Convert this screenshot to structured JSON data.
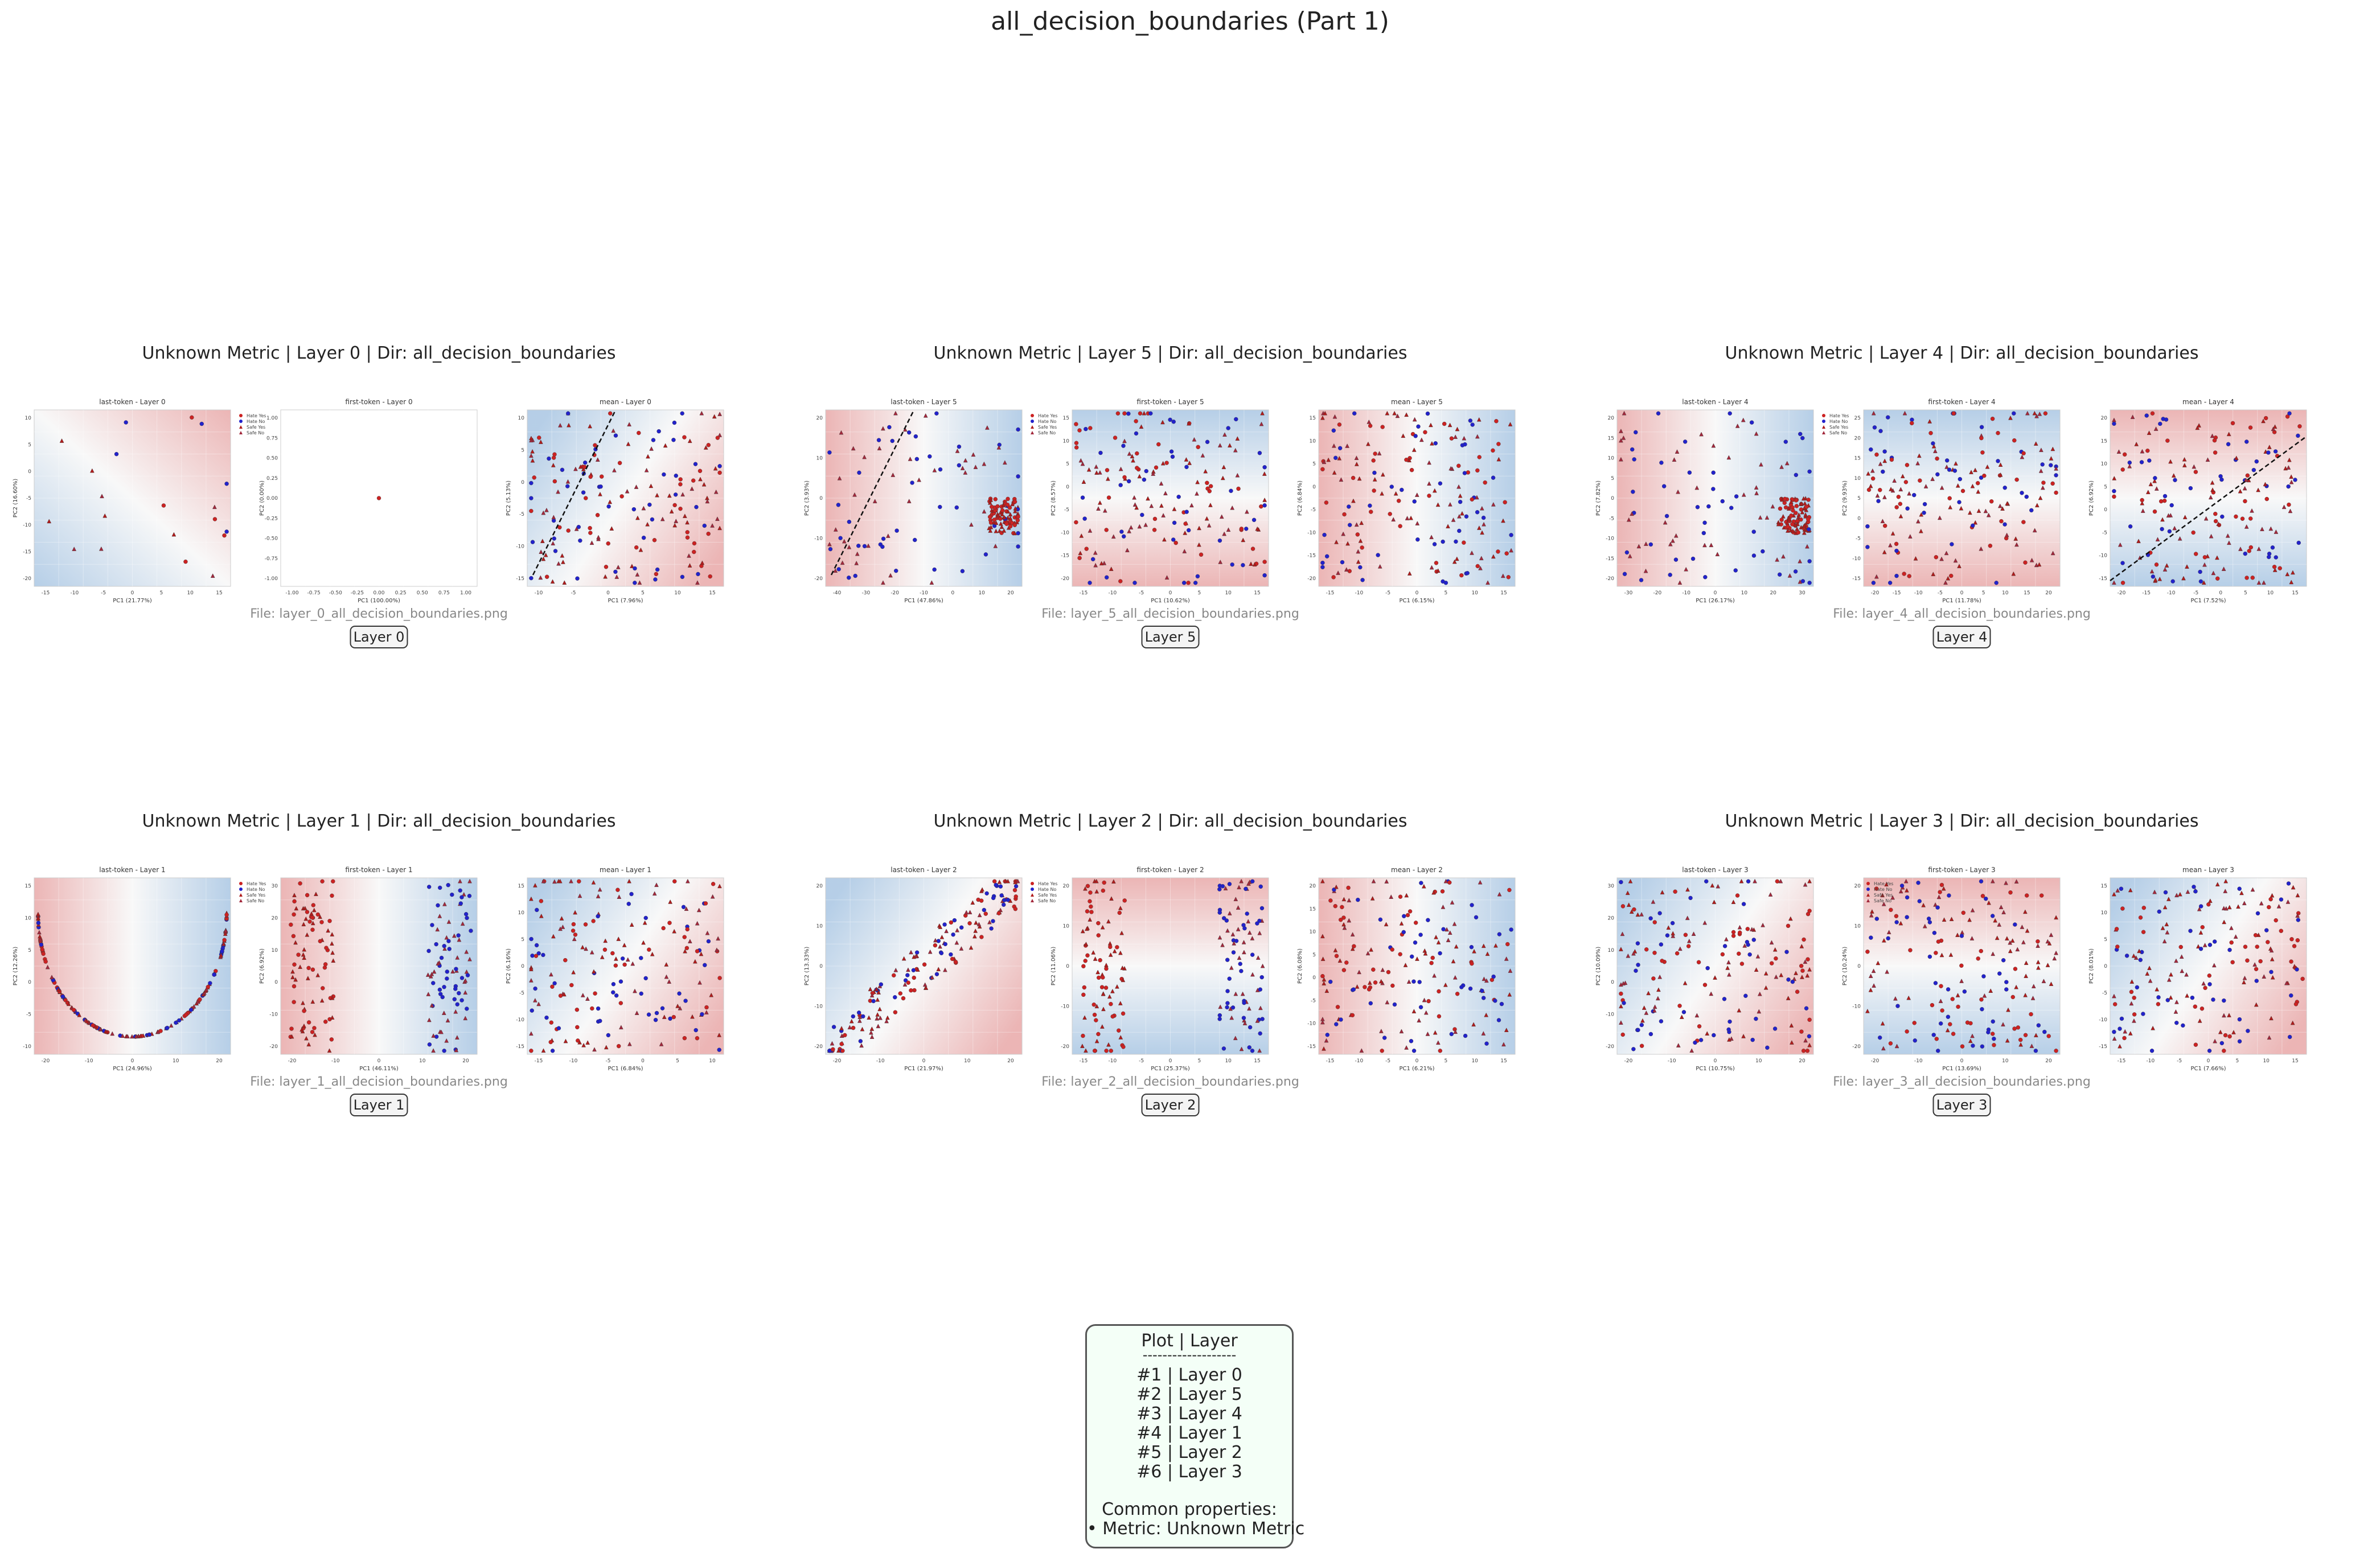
{
  "page_title": "all_decision_boundaries (Part 1)",
  "colors": {
    "hate_yes": "#cc2222",
    "hate_no": "#2222cc",
    "safe_yes": "#b01c1c",
    "safe_no": "#a2283c",
    "bg_red": "#e8a8a8",
    "bg_white": "#f7f7f7",
    "bg_blue": "#a9c6e3",
    "boundary": "#111111"
  },
  "legend_labels": [
    "Hate Yes",
    "Hate No",
    "Safe Yes",
    "Safe No"
  ],
  "groups": [
    {
      "title": "Unknown Metric | Layer 0 | Dir: all_decision_boundaries",
      "file": "File: layer_0_all_decision_boundaries.png",
      "badge": "Layer 0",
      "panels": [
        {
          "title": "last-token - Layer 0",
          "xlabel": "PC1 (21.77%)",
          "ylabel": "PC2 (16.60%)",
          "xticks": [
            "-15",
            "-10",
            "-5",
            "0",
            "5",
            "10",
            "15"
          ],
          "yticks": [
            "10",
            "5",
            "0",
            "-5",
            "-10",
            "-15",
            "-20"
          ],
          "n": 20,
          "grad": "blue-right-red",
          "legend": true,
          "seed": 11
        },
        {
          "title": "first-token - Layer 0",
          "xlabel": "PC1 (100.00%)",
          "ylabel": "PC2 (0.00%)",
          "xticks": [
            "-1.00",
            "-0.75",
            "-0.50",
            "-0.25",
            "0.00",
            "0.25",
            "0.50",
            "0.75",
            "1.00"
          ],
          "yticks": [
            "1.00",
            "0.75",
            "0.50",
            "0.25",
            "0.00",
            "-0.25",
            "-0.50",
            "-0.75",
            "-1.00"
          ],
          "n": 0,
          "grad": "plain",
          "single": true,
          "seed": 12
        },
        {
          "title": "mean - Layer 0",
          "xlabel": "PC1 (7.96%)",
          "ylabel": "PC2 (5.13%)",
          "xticks": [
            "-10",
            "-5",
            "0",
            "5",
            "10",
            "15"
          ],
          "yticks": [
            "10",
            "5",
            "0",
            "-5",
            "-10",
            "-15"
          ],
          "n": 180,
          "grad": "blue-left-red",
          "boundary": true,
          "seed": 13
        }
      ]
    },
    {
      "title": "Unknown Metric | Layer 5 | Dir: all_decision_boundaries",
      "file": "File: layer_5_all_decision_boundaries.png",
      "badge": "Layer 5",
      "panels": [
        {
          "title": "last-token - Layer 5",
          "xlabel": "PC1 (47.86%)",
          "ylabel": "PC2 (3.93%)",
          "xticks": [
            "-40",
            "-30",
            "-20",
            "-10",
            "0",
            "10",
            "20"
          ],
          "yticks": [
            "20",
            "10",
            "0",
            "-10",
            "-20"
          ],
          "n": 170,
          "grad": "red-left-blue",
          "cluster": true,
          "boundary": true,
          "legend": true,
          "seed": 21
        },
        {
          "title": "first-token - Layer 5",
          "xlabel": "PC1 (10.62%)",
          "ylabel": "PC2 (8.57%)",
          "xticks": [
            "-15",
            "-10",
            "-5",
            "0",
            "5",
            "10",
            "15"
          ],
          "yticks": [
            "15",
            "10",
            "5",
            "0",
            "-5",
            "-10",
            "-15",
            "-20"
          ],
          "n": 180,
          "grad": "blue-top-red",
          "seed": 22
        },
        {
          "title": "mean - Layer 5",
          "xlabel": "PC1 (6.15%)",
          "ylabel": "PC2 (6.84%)",
          "xticks": [
            "-15",
            "-10",
            "-5",
            "0",
            "5",
            "10",
            "15"
          ],
          "yticks": [
            "15",
            "10",
            "5",
            "0",
            "-5",
            "-10",
            "-15",
            "-20"
          ],
          "n": 180,
          "grad": "red-left-blue",
          "seed": 23
        }
      ]
    },
    {
      "title": "Unknown Metric | Layer 4 | Dir: all_decision_boundaries",
      "file": "File: layer_4_all_decision_boundaries.png",
      "badge": "Layer 4",
      "panels": [
        {
          "title": "last-token - Layer 4",
          "xlabel": "PC1 (26.17%)",
          "ylabel": "PC2 (7.82%)",
          "xticks": [
            "-30",
            "-20",
            "-10",
            "0",
            "10",
            "20",
            "30"
          ],
          "yticks": [
            "20",
            "15",
            "10",
            "5",
            "0",
            "-5",
            "-10",
            "-15",
            "-20"
          ],
          "n": 180,
          "grad": "red-left-blue",
          "cluster": true,
          "legend": true,
          "seed": 31
        },
        {
          "title": "first-token - Layer 4",
          "xlabel": "PC1 (11.78%)",
          "ylabel": "PC2 (9.93%)",
          "xticks": [
            "-20",
            "-15",
            "-10",
            "-5",
            "0",
            "5",
            "10",
            "15",
            "20"
          ],
          "yticks": [
            "25",
            "20",
            "15",
            "10",
            "5",
            "0",
            "-5",
            "-10",
            "-15"
          ],
          "n": 180,
          "grad": "blue-top-red",
          "seed": 32
        },
        {
          "title": "mean - Layer 4",
          "xlabel": "PC1 (7.52%)",
          "ylabel": "PC2 (6.92%)",
          "xticks": [
            "-20",
            "-15",
            "-10",
            "-5",
            "0",
            "5",
            "10",
            "15"
          ],
          "yticks": [
            "20",
            "15",
            "10",
            "5",
            "0",
            "-5",
            "-10",
            "-15"
          ],
          "n": 180,
          "grad": "red-top-blue",
          "boundary2": true,
          "seed": 33
        }
      ]
    },
    {
      "title": "Unknown Metric | Layer 1 | Dir: all_decision_boundaries",
      "file": "File: layer_1_all_decision_boundaries.png",
      "badge": "Layer 1",
      "panels": [
        {
          "title": "last-token - Layer 1",
          "xlabel": "PC1 (24.96%)",
          "ylabel": "PC2 (12.26%)",
          "xticks": [
            "-20",
            "-10",
            "0",
            "10",
            "20"
          ],
          "yticks": [
            "15",
            "10",
            "5",
            "0",
            "-5",
            "-10"
          ],
          "n": 170,
          "grad": "red-left-blue",
          "arc": true,
          "legend": true,
          "seed": 41
        },
        {
          "title": "first-token - Layer 1",
          "xlabel": "PC1 (46.11%)",
          "ylabel": "PC2 (6.92%)",
          "xticks": [
            "-20",
            "-10",
            "0",
            "10",
            "20"
          ],
          "yticks": [
            "30",
            "20",
            "10",
            "0",
            "-10",
            "-20"
          ],
          "n": 170,
          "grad": "red-left-blue",
          "twoclust": true,
          "seed": 42
        },
        {
          "title": "mean - Layer 1",
          "xlabel": "PC1 (6.84%)",
          "ylabel": "PC2 (6.16%)",
          "xticks": [
            "-15",
            "-10",
            "-5",
            "0",
            "5",
            "10"
          ],
          "yticks": [
            "15",
            "10",
            "5",
            "0",
            "-5",
            "-10",
            "-15"
          ],
          "n": 180,
          "grad": "blue-left-red",
          "seed": 43
        }
      ]
    },
    {
      "title": "Unknown Metric | Layer 2 | Dir: all_decision_boundaries",
      "file": "File: layer_2_all_decision_boundaries.png",
      "badge": "Layer 2",
      "panels": [
        {
          "title": "last-token - Layer 2",
          "xlabel": "PC1 (21.97%)",
          "ylabel": "PC2 (13.33%)",
          "xticks": [
            "-20",
            "-10",
            "0",
            "10",
            "20"
          ],
          "yticks": [
            "20",
            "10",
            "0",
            "-10",
            "-20"
          ],
          "n": 170,
          "grad": "blue-left-red",
          "diag": true,
          "legend": true,
          "seed": 51
        },
        {
          "title": "first-token - Layer 2",
          "xlabel": "PC1 (25.37%)",
          "ylabel": "PC2 (11.06%)",
          "xticks": [
            "-15",
            "-10",
            "-5",
            "0",
            "5",
            "10",
            "15"
          ],
          "yticks": [
            "20",
            "10",
            "0",
            "-10",
            "-20"
          ],
          "n": 170,
          "grad": "red-top-blue",
          "twoclust": true,
          "seed": 52
        },
        {
          "title": "mean - Layer 2",
          "xlabel": "PC1 (6.21%)",
          "ylabel": "PC2 (6.08%)",
          "xticks": [
            "-15",
            "-10",
            "-5",
            "0",
            "5",
            "10",
            "15"
          ],
          "yticks": [
            "20",
            "15",
            "10",
            "5",
            "0",
            "-5",
            "-10",
            "-15"
          ],
          "n": 180,
          "grad": "red-left-blue",
          "seed": 53
        }
      ]
    },
    {
      "title": "Unknown Metric | Layer 3 | Dir: all_decision_boundaries",
      "file": "File: layer_3_all_decision_boundaries.png",
      "badge": "Layer 3",
      "panels": [
        {
          "title": "last-token - Layer 3",
          "xlabel": "PC1 (10.75%)",
          "ylabel": "PC2 (10.09%)",
          "xticks": [
            "-20",
            "-10",
            "0",
            "10",
            "20"
          ],
          "yticks": [
            "30",
            "20",
            "10",
            "0",
            "-10",
            "-20"
          ],
          "n": 180,
          "grad": "blue-left-red",
          "seed": 61
        },
        {
          "title": "first-token - Layer 3",
          "xlabel": "PC1 (13.69%)",
          "ylabel": "PC2 (10.24%)",
          "xticks": [
            "-20",
            "-10",
            "0",
            "10",
            "20"
          ],
          "yticks": [
            "20",
            "10",
            "0",
            "-10",
            "-20"
          ],
          "n": 180,
          "grad": "red-top-blue",
          "legend": true,
          "legendLeft": true,
          "seed": 62
        },
        {
          "title": "mean - Layer 3",
          "xlabel": "PC1 (7.66%)",
          "ylabel": "PC2 (8.01%)",
          "xticks": [
            "-15",
            "-10",
            "-5",
            "0",
            "5",
            "10",
            "15"
          ],
          "yticks": [
            "15",
            "10",
            "5",
            "0",
            "-5",
            "-10",
            "-15"
          ],
          "n": 180,
          "grad": "blue-left-red",
          "seed": 63
        }
      ]
    }
  ],
  "summary": {
    "header": "Plot | Layer",
    "rule": "-------------------",
    "rows": [
      "#1 | Layer 0",
      "#2 | Layer 5",
      "#3 | Layer 4",
      "#4 | Layer 1",
      "#5 | Layer 2",
      "#6 | Layer 3"
    ],
    "common_title": "Common properties:",
    "common_items": [
      "• Metric: Unknown Metric"
    ]
  },
  "chart_data": [
    {
      "type": "scatter",
      "title": "last-token - Layer 0",
      "xlabel": "PC1 (21.77%)",
      "ylabel": "PC2 (16.60%)",
      "series": [
        {
          "name": "Hate Yes"
        },
        {
          "name": "Hate No"
        },
        {
          "name": "Safe Yes"
        },
        {
          "name": "Safe No"
        }
      ]
    },
    {
      "type": "scatter",
      "title": "first-token - Layer 0",
      "xlabel": "PC1 (100.00%)",
      "ylabel": "PC2 (0.00%)",
      "xlim": [
        -1,
        1
      ],
      "ylim": [
        -1,
        1
      ],
      "x": [
        0
      ],
      "y": [
        0
      ]
    },
    {
      "type": "scatter",
      "title": "mean - Layer 0",
      "xlabel": "PC1 (7.96%)",
      "ylabel": "PC2 (5.13%)"
    },
    {
      "type": "scatter",
      "title": "last-token - Layer 5",
      "xlabel": "PC1 (47.86%)",
      "ylabel": "PC2 (3.93%)"
    },
    {
      "type": "scatter",
      "title": "first-token - Layer 5",
      "xlabel": "PC1 (10.62%)",
      "ylabel": "PC2 (8.57%)"
    },
    {
      "type": "scatter",
      "title": "mean - Layer 5",
      "xlabel": "PC1 (6.15%)",
      "ylabel": "PC2 (6.84%)"
    },
    {
      "type": "scatter",
      "title": "last-token - Layer 4",
      "xlabel": "PC1 (26.17%)",
      "ylabel": "PC2 (7.82%)"
    },
    {
      "type": "scatter",
      "title": "first-token - Layer 4",
      "xlabel": "PC1 (11.78%)",
      "ylabel": "PC2 (9.93%)"
    },
    {
      "type": "scatter",
      "title": "mean - Layer 4",
      "xlabel": "PC1 (7.52%)",
      "ylabel": "PC2 (6.92%)"
    },
    {
      "type": "scatter",
      "title": "last-token - Layer 1",
      "xlabel": "PC1 (24.96%)",
      "ylabel": "PC2 (12.26%)"
    },
    {
      "type": "scatter",
      "title": "first-token - Layer 1",
      "xlabel": "PC1 (46.11%)",
      "ylabel": "PC2 (6.92%)"
    },
    {
      "type": "scatter",
      "title": "mean - Layer 1",
      "xlabel": "PC1 (6.84%)",
      "ylabel": "PC2 (6.16%)"
    },
    {
      "type": "scatter",
      "title": "last-token - Layer 2",
      "xlabel": "PC1 (21.97%)",
      "ylabel": "PC2 (13.33%)"
    },
    {
      "type": "scatter",
      "title": "first-token - Layer 2",
      "xlabel": "PC1 (25.37%)",
      "ylabel": "PC2 (11.06%)"
    },
    {
      "type": "scatter",
      "title": "mean - Layer 2",
      "xlabel": "PC1 (6.21%)",
      "ylabel": "PC2 (6.08%)"
    },
    {
      "type": "scatter",
      "title": "last-token - Layer 3",
      "xlabel": "PC1 (10.75%)",
      "ylabel": "PC2 (10.09%)"
    },
    {
      "type": "scatter",
      "title": "first-token - Layer 3",
      "xlabel": "PC1 (13.69%)",
      "ylabel": "PC2 (10.24%)"
    },
    {
      "type": "scatter",
      "title": "mean - Layer 3",
      "xlabel": "PC1 (7.66%)",
      "ylabel": "PC2 (8.01%)"
    }
  ]
}
